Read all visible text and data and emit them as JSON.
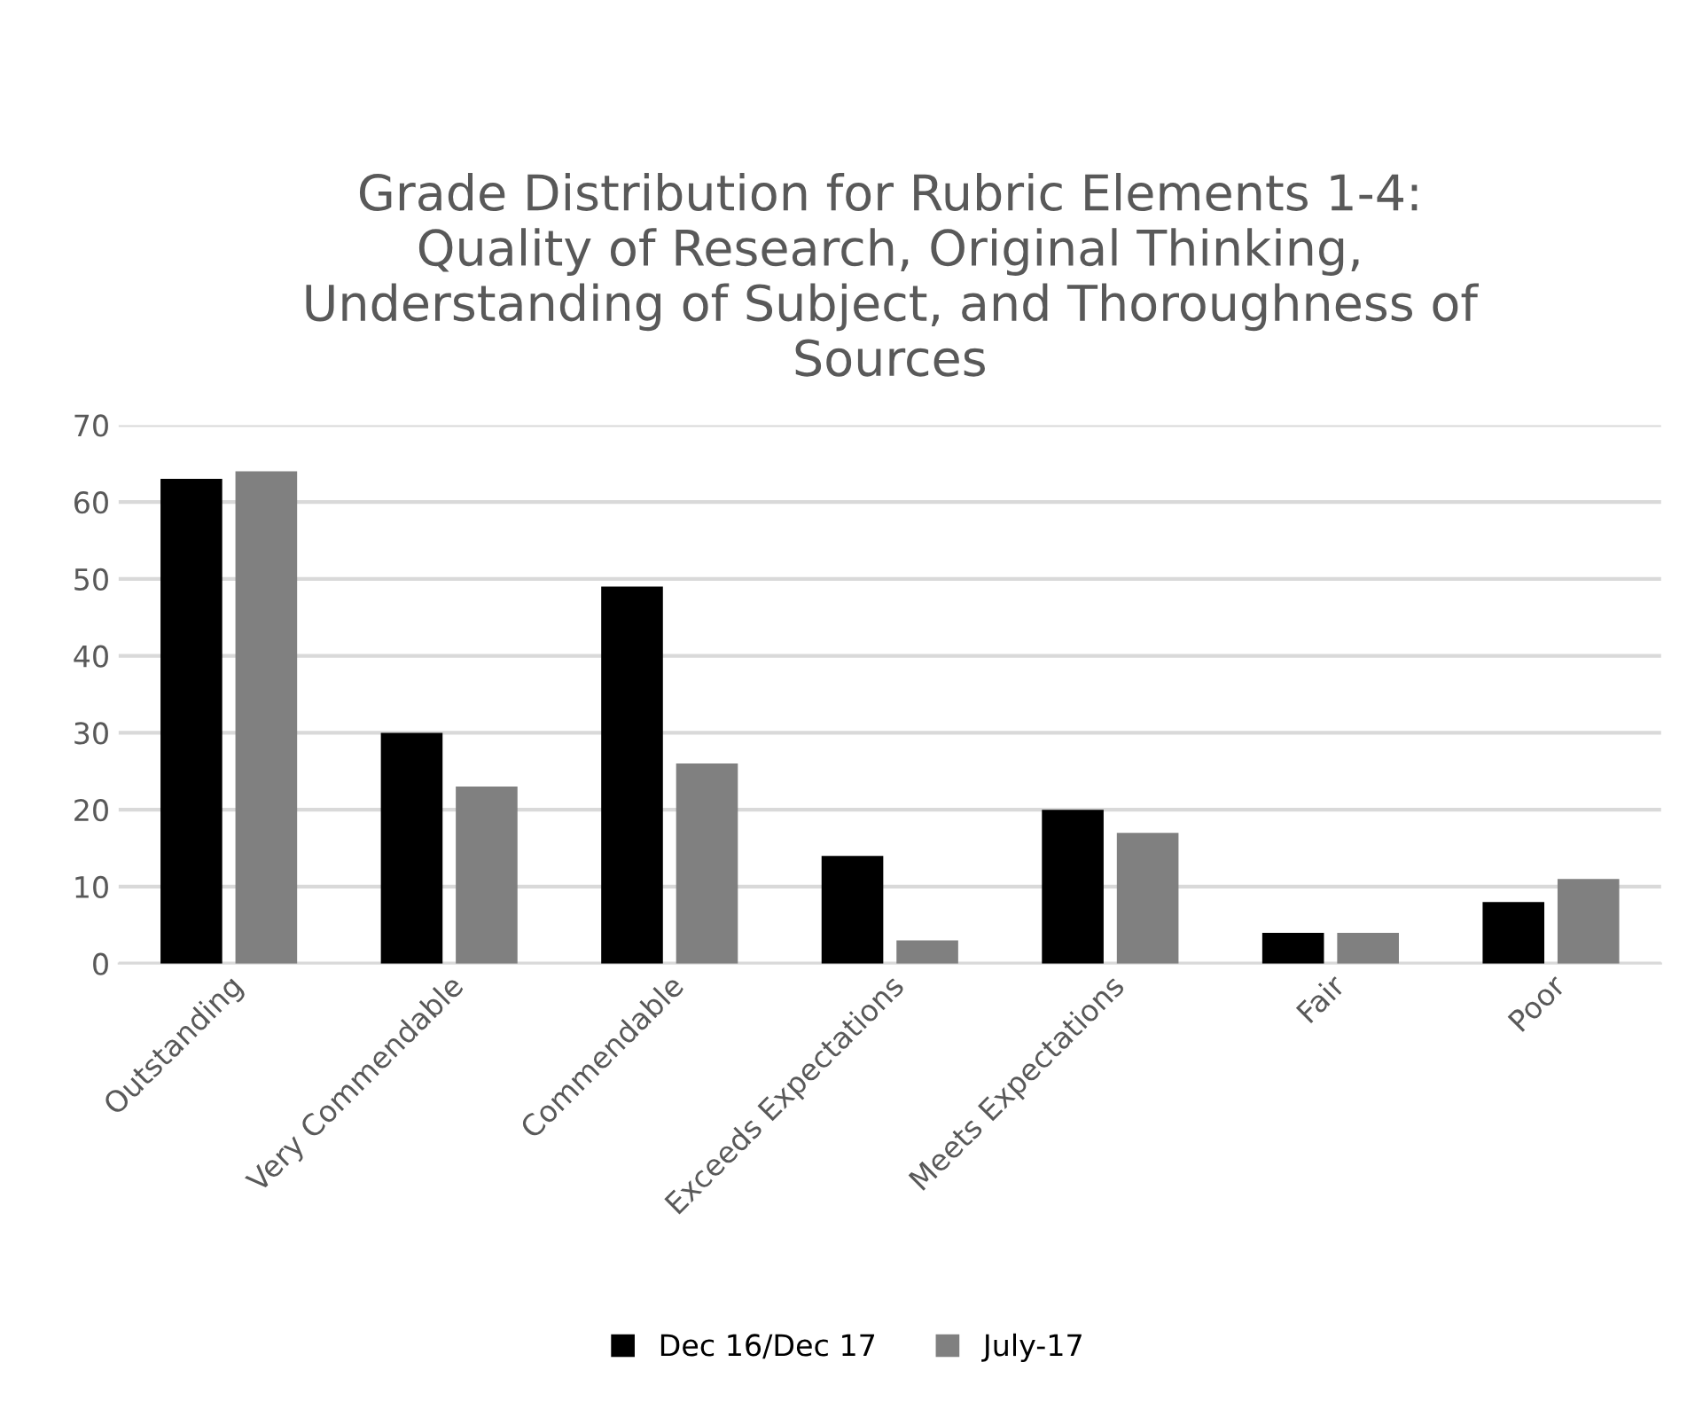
{
  "chart_data": {
    "type": "bar",
    "title": "Grade Distribution for Rubric Elements 1-4:\nQuality of Research, Original Thinking,\nUnderstanding of Subject, and Thoroughness of\nSources",
    "categories": [
      "Outstanding",
      "Very Commendable",
      "Commendable",
      "Exceeds Expectations",
      "Meets Expectations",
      "Fair",
      "Poor"
    ],
    "series": [
      {
        "name": "Dec 16/Dec 17",
        "color": "#000000",
        "values": [
          63,
          30,
          49,
          14,
          20,
          4,
          8
        ]
      },
      {
        "name": "July-17",
        "color": "#808080",
        "values": [
          64,
          23,
          26,
          3,
          17,
          4,
          11
        ]
      }
    ],
    "ylim": [
      0,
      70
    ],
    "yticks": [
      0,
      10,
      20,
      30,
      40,
      50,
      60,
      70
    ],
    "grid": "y",
    "legend": "bottom"
  }
}
